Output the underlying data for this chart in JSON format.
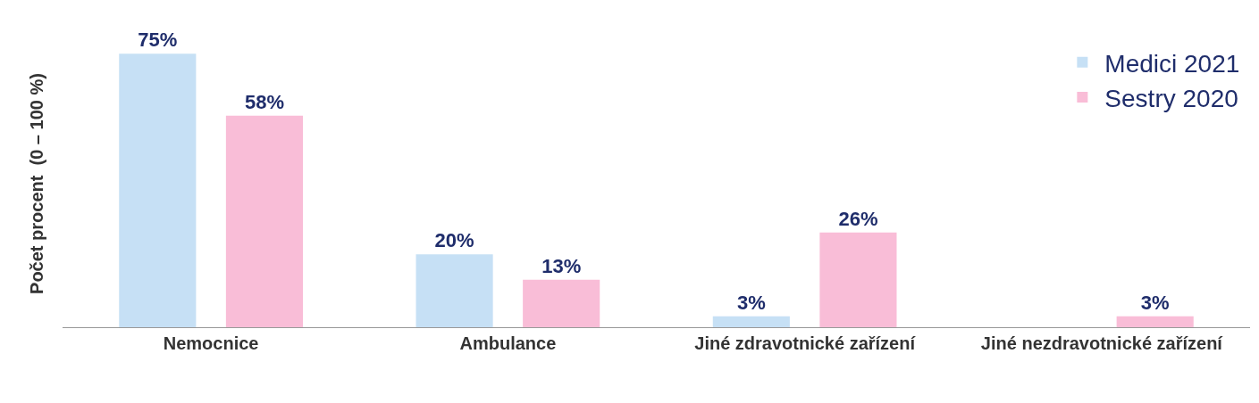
{
  "chart_data": {
    "type": "bar",
    "ylabel": "Počet procent  (0 – 100 %)",
    "categories": [
      "Nemocnice",
      "Ambulance",
      "Jiné zdravotnické zařízení",
      "Jiné nezdravotnické zařízení"
    ],
    "series": [
      {
        "name": "Medici 2021",
        "color": "#c6e0f5",
        "values": [
          75,
          20,
          3,
          0
        ],
        "value_labels": [
          "75%",
          "20%",
          "3%",
          null
        ]
      },
      {
        "name": "Sestry 2020",
        "color": "#f9bdd7",
        "values": [
          58,
          13,
          26,
          3
        ],
        "value_labels": [
          "58%",
          "13%",
          "26%",
          "3%"
        ]
      }
    ],
    "legend": "top right"
  }
}
